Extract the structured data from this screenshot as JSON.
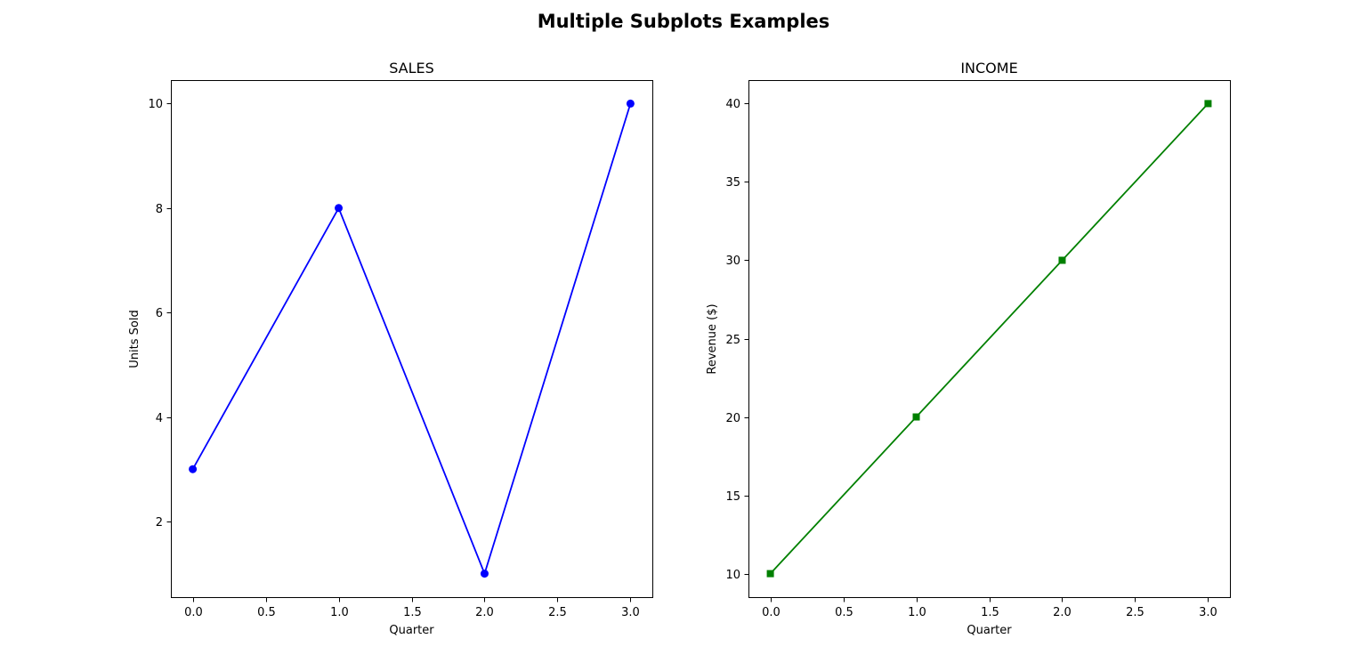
{
  "figure": {
    "title": "Multiple Subplots Examples"
  },
  "chart_data": [
    {
      "type": "line",
      "title": "SALES",
      "xlabel": "Quarter",
      "ylabel": "Units Sold",
      "x": [
        0,
        1,
        2,
        3
      ],
      "series": [
        {
          "values": [
            3,
            8,
            1,
            10
          ],
          "color": "#0000ff",
          "marker": "circle"
        }
      ],
      "xlim": [
        -0.15,
        3.15
      ],
      "ylim": [
        0.55,
        10.45
      ],
      "xticks": [
        0,
        0.5,
        1,
        1.5,
        2,
        2.5,
        3
      ],
      "xtick_labels": [
        "0.0",
        "0.5",
        "1.0",
        "1.5",
        "2.0",
        "2.5",
        "3.0"
      ],
      "yticks": [
        2,
        4,
        6,
        8,
        10
      ],
      "ytick_labels": [
        "2",
        "4",
        "6",
        "8",
        "10"
      ],
      "grid": false,
      "legend": "none"
    },
    {
      "type": "line",
      "title": "INCOME",
      "xlabel": "Quarter",
      "ylabel": "Revenue ($)",
      "x": [
        0,
        1,
        2,
        3
      ],
      "series": [
        {
          "values": [
            10,
            20,
            30,
            40
          ],
          "color": "#008000",
          "marker": "square"
        }
      ],
      "xlim": [
        -0.15,
        3.15
      ],
      "ylim": [
        8.5,
        41.5
      ],
      "xticks": [
        0,
        0.5,
        1,
        1.5,
        2,
        2.5,
        3
      ],
      "xtick_labels": [
        "0.0",
        "0.5",
        "1.0",
        "1.5",
        "2.0",
        "2.5",
        "3.0"
      ],
      "yticks": [
        10,
        15,
        20,
        25,
        30,
        35,
        40
      ],
      "ytick_labels": [
        "10",
        "15",
        "20",
        "25",
        "30",
        "35",
        "40"
      ],
      "grid": false,
      "legend": "none"
    }
  ]
}
